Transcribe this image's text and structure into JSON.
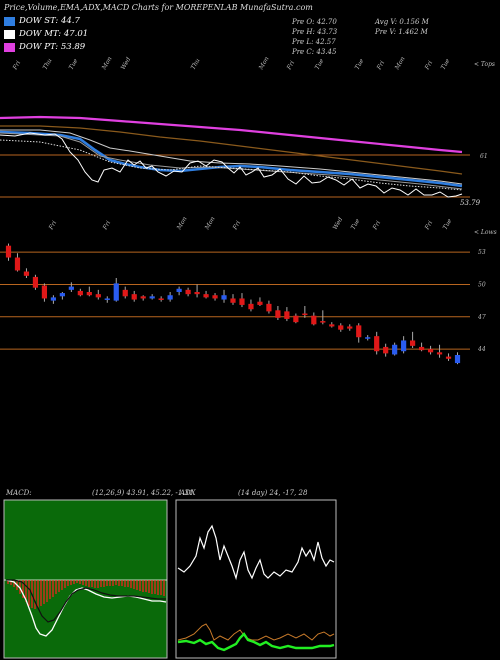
{
  "header": {
    "title": "Price,Volume,EMA,ADX,MACD Charts for MOREPENLAB MunafaSutra.com"
  },
  "legend": [
    {
      "label": "DOW ST: 44.7",
      "color": "#2f7ee0"
    },
    {
      "label": "DOW MT: 47.01",
      "color": "#ffffff"
    },
    {
      "label": "DOW PT: 53.89",
      "color": "#e040e0"
    }
  ],
  "stats": {
    "col1": [
      "Pre  O: 42.70",
      "Pre  H: 43.73",
      "Pre  L: 42.57",
      "Pre  C: 43.45"
    ],
    "col2": [
      "Avg V: 0.156  M",
      "Pre  V: 1.462  M"
    ]
  },
  "ema_panel": {
    "topright_label": "< Tops",
    "price_labels": [
      "61",
      "53.79"
    ],
    "date_ticks": [
      "Fri",
      "Thu",
      "Tue",
      "Mon",
      "Wed",
      "Thu",
      "Mon",
      "Fri",
      "Tue",
      "Tue",
      "Fri",
      "Mon",
      "Fri",
      "Tue"
    ]
  },
  "candle_panel": {
    "topright_label": "< Lows",
    "date_ticks": [
      "Fri",
      "Fri",
      "Mon",
      "Mon",
      "Fri",
      "Wed",
      "Tue",
      "Fri",
      "Fri",
      "Tue"
    ]
  },
  "macd_panel": {
    "label": "MACD:",
    "values": "(12,26,9) 43.91, 45.22, -1.31"
  },
  "adx_panel": {
    "label": "ADX",
    "values": "(14 day) 24, -17, 28"
  },
  "chart_data": {
    "type": "candlestick",
    "y_ticks": [
      53,
      50,
      47,
      44
    ],
    "ylim": [
      41.5,
      54.5
    ],
    "candles": [
      [
        53.6,
        53.8,
        52.2,
        52.5
      ],
      [
        52.5,
        52.9,
        51.2,
        51.3
      ],
      [
        51.2,
        51.5,
        50.6,
        50.8
      ],
      [
        50.7,
        50.9,
        49.5,
        49.7
      ],
      [
        49.9,
        50.1,
        48.4,
        48.7
      ],
      [
        48.5,
        49.0,
        48.2,
        48.8
      ],
      [
        48.9,
        49.3,
        48.6,
        49.2
      ],
      [
        49.5,
        50.2,
        49.3,
        49.8
      ],
      [
        49.4,
        49.6,
        48.9,
        49.0
      ],
      [
        49.3,
        49.8,
        48.9,
        49.0
      ],
      [
        49.1,
        49.5,
        48.6,
        48.8
      ],
      [
        48.6,
        48.9,
        48.3,
        48.7
      ],
      [
        48.5,
        50.6,
        48.4,
        50.1
      ],
      [
        49.5,
        49.8,
        48.7,
        48.9
      ],
      [
        49.1,
        49.4,
        48.4,
        48.6
      ],
      [
        48.9,
        49.0,
        48.5,
        48.7
      ],
      [
        48.7,
        49.1,
        48.6,
        48.9
      ],
      [
        48.7,
        48.9,
        48.4,
        48.6
      ],
      [
        48.6,
        49.3,
        48.4,
        49.0
      ],
      [
        49.3,
        49.8,
        49.0,
        49.6
      ],
      [
        49.5,
        49.7,
        48.9,
        49.1
      ],
      [
        49.3,
        50.0,
        48.8,
        49.1
      ],
      [
        49.1,
        49.4,
        48.7,
        48.8
      ],
      [
        49.0,
        49.2,
        48.5,
        48.7
      ],
      [
        48.6,
        49.5,
        48.3,
        49.0
      ],
      [
        48.7,
        49.1,
        48.1,
        48.3
      ],
      [
        48.7,
        49.2,
        47.9,
        48.1
      ],
      [
        48.2,
        48.6,
        47.5,
        47.7
      ],
      [
        48.4,
        48.8,
        48.0,
        48.1
      ],
      [
        48.2,
        48.5,
        47.3,
        47.5
      ],
      [
        47.6,
        48.0,
        46.7,
        46.9
      ],
      [
        47.5,
        47.9,
        46.6,
        46.8
      ],
      [
        47.1,
        47.3,
        46.4,
        46.5
      ],
      [
        47.3,
        48.0,
        46.9,
        47.2
      ],
      [
        47.1,
        47.4,
        46.2,
        46.3
      ],
      [
        46.6,
        47.6,
        46.3,
        46.5
      ],
      [
        46.3,
        46.5,
        46.0,
        46.1
      ],
      [
        46.2,
        46.4,
        45.6,
        45.8
      ],
      [
        46.1,
        46.3,
        45.7,
        45.9
      ],
      [
        46.2,
        46.4,
        44.6,
        45.1
      ],
      [
        45.0,
        45.3,
        44.8,
        45.1
      ],
      [
        45.2,
        45.6,
        43.5,
        43.8
      ],
      [
        44.2,
        44.5,
        43.3,
        43.6
      ],
      [
        43.5,
        44.6,
        43.4,
        44.4
      ],
      [
        43.8,
        45.2,
        43.6,
        44.8
      ],
      [
        44.8,
        45.6,
        44.1,
        44.3
      ],
      [
        44.2,
        44.6,
        43.8,
        43.9
      ],
      [
        44.0,
        44.3,
        43.5,
        43.7
      ],
      [
        43.7,
        44.4,
        43.2,
        43.5
      ],
      [
        43.3,
        43.6,
        42.9,
        43.1
      ],
      [
        42.7,
        43.7,
        42.6,
        43.45
      ]
    ]
  }
}
